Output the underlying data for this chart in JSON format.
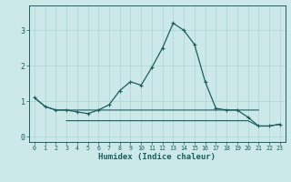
{
  "xlabel": "Humidex (Indice chaleur)",
  "background_color": "#cce8e8",
  "grid_color": "#aad4d4",
  "line_color": "#1a5f5f",
  "x_values": [
    0,
    1,
    2,
    3,
    4,
    5,
    6,
    7,
    8,
    9,
    10,
    11,
    12,
    13,
    14,
    15,
    16,
    17,
    18,
    19,
    20,
    21,
    22,
    23
  ],
  "curve_y": [
    1.1,
    0.85,
    0.75,
    0.75,
    0.7,
    0.65,
    0.75,
    0.9,
    1.3,
    1.55,
    1.45,
    1.95,
    2.5,
    3.2,
    3.0,
    2.6,
    1.55,
    0.8,
    0.75,
    0.75,
    0.55,
    0.3,
    0.3,
    0.35
  ],
  "line1_x": [
    0,
    1,
    2,
    3,
    4,
    5,
    6,
    7,
    8,
    9,
    10,
    11,
    12,
    13,
    14,
    15,
    16,
    17,
    18,
    19,
    20,
    21
  ],
  "line1_y": [
    1.1,
    0.85,
    0.75,
    0.75,
    0.75,
    0.75,
    0.75,
    0.75,
    0.75,
    0.75,
    0.75,
    0.75,
    0.75,
    0.75,
    0.75,
    0.75,
    0.75,
    0.75,
    0.75,
    0.75,
    0.75,
    0.75
  ],
  "line2_x": [
    3,
    4,
    5,
    6,
    7,
    8,
    9,
    10,
    11,
    12,
    13,
    14,
    15,
    16,
    17,
    18,
    19,
    20,
    21,
    22,
    23
  ],
  "line2_y": [
    0.45,
    0.45,
    0.45,
    0.45,
    0.45,
    0.45,
    0.45,
    0.45,
    0.45,
    0.45,
    0.45,
    0.45,
    0.45,
    0.45,
    0.45,
    0.45,
    0.45,
    0.45,
    0.3,
    0.3,
    0.35
  ],
  "ylim": [
    -0.15,
    3.7
  ],
  "xlim": [
    -0.5,
    23.5
  ],
  "yticks": [
    0,
    1,
    2,
    3
  ],
  "xticks": [
    0,
    1,
    2,
    3,
    4,
    5,
    6,
    7,
    8,
    9,
    10,
    11,
    12,
    13,
    14,
    15,
    16,
    17,
    18,
    19,
    20,
    21,
    22,
    23
  ]
}
